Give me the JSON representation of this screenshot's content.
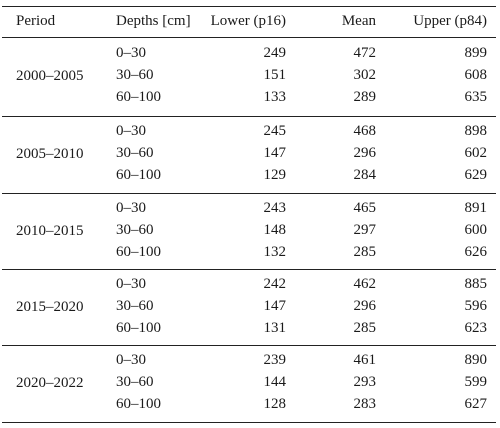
{
  "table": {
    "headers": {
      "period": "Period",
      "depths": "Depths [cm]",
      "lower": "Lower (p16)",
      "mean": "Mean",
      "upper": "Upper (p84)"
    },
    "groups": [
      {
        "period": "2000–2005",
        "rows": [
          {
            "depth": "0–30",
            "lower": "249",
            "mean": "472",
            "upper": "899"
          },
          {
            "depth": "30–60",
            "lower": "151",
            "mean": "302",
            "upper": "608"
          },
          {
            "depth": "60–100",
            "lower": "133",
            "mean": "289",
            "upper": "635"
          }
        ]
      },
      {
        "period": "2005–2010",
        "rows": [
          {
            "depth": "0–30",
            "lower": "245",
            "mean": "468",
            "upper": "898"
          },
          {
            "depth": "30–60",
            "lower": "147",
            "mean": "296",
            "upper": "602"
          },
          {
            "depth": "60–100",
            "lower": "129",
            "mean": "284",
            "upper": "629"
          }
        ]
      },
      {
        "period": "2010–2015",
        "rows": [
          {
            "depth": "0–30",
            "lower": "243",
            "mean": "465",
            "upper": "891"
          },
          {
            "depth": "30–60",
            "lower": "148",
            "mean": "297",
            "upper": "600"
          },
          {
            "depth": "60–100",
            "lower": "132",
            "mean": "285",
            "upper": "626"
          }
        ]
      },
      {
        "period": "2015–2020",
        "rows": [
          {
            "depth": "0–30",
            "lower": "242",
            "mean": "462",
            "upper": "885"
          },
          {
            "depth": "30–60",
            "lower": "147",
            "mean": "296",
            "upper": "596"
          },
          {
            "depth": "60–100",
            "lower": "131",
            "mean": "285",
            "upper": "623"
          }
        ]
      },
      {
        "period": "2020–2022",
        "rows": [
          {
            "depth": "0–30",
            "lower": "239",
            "mean": "461",
            "upper": "890"
          },
          {
            "depth": "30–60",
            "lower": "144",
            "mean": "293",
            "upper": "599"
          },
          {
            "depth": "60–100",
            "lower": "128",
            "mean": "283",
            "upper": "627"
          }
        ]
      }
    ]
  }
}
